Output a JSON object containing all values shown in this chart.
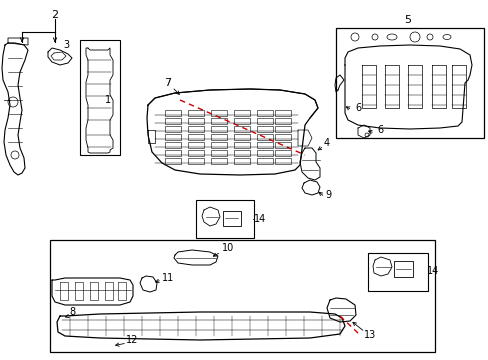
{
  "bg_color": "#ffffff",
  "line_color": "#000000",
  "red_color": "#cc0000",
  "fig_width": 4.89,
  "fig_height": 3.6,
  "dpi": 100
}
